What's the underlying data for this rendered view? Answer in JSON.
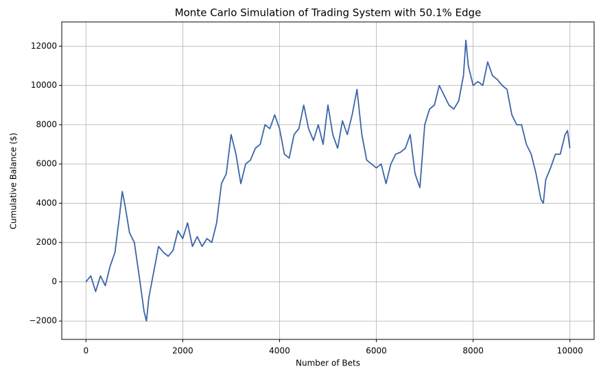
{
  "chart_data": {
    "type": "line",
    "title": "Monte Carlo Simulation of Trading System with 50.1% Edge",
    "x_label": "Number of Bets",
    "y_label": "Cumulative Balance ($)",
    "x": [
      0,
      100,
      200,
      300,
      400,
      500,
      600,
      700,
      750,
      800,
      900,
      1000,
      1100,
      1200,
      1250,
      1300,
      1400,
      1500,
      1600,
      1700,
      1800,
      1900,
      2000,
      2100,
      2200,
      2300,
      2400,
      2500,
      2600,
      2700,
      2800,
      2900,
      3000,
      3100,
      3200,
      3300,
      3400,
      3500,
      3600,
      3700,
      3800,
      3900,
      4000,
      4100,
      4200,
      4300,
      4400,
      4500,
      4600,
      4700,
      4800,
      4900,
      5000,
      5100,
      5200,
      5300,
      5400,
      5500,
      5600,
      5700,
      5800,
      5900,
      6000,
      6100,
      6200,
      6300,
      6400,
      6500,
      6600,
      6700,
      6800,
      6900,
      7000,
      7100,
      7200,
      7300,
      7400,
      7500,
      7600,
      7700,
      7800,
      7850,
      7900,
      8000,
      8100,
      8200,
      8300,
      8400,
      8500,
      8600,
      8700,
      8800,
      8900,
      9000,
      9100,
      9200,
      9300,
      9400,
      9450,
      9500,
      9600,
      9700,
      9800,
      9900,
      9950,
      9999
    ],
    "series": [
      {
        "name": "Cumulative Balance",
        "color": "#3a64a8",
        "values": [
          0,
          300,
          -500,
          300,
          -200,
          800,
          1500,
          3500,
          4600,
          4000,
          2500,
          2000,
          300,
          -1500,
          -2000,
          -800,
          500,
          1800,
          1500,
          1300,
          1600,
          2600,
          2200,
          3000,
          1800,
          2300,
          1800,
          2200,
          2000,
          3000,
          5000,
          5500,
          7500,
          6500,
          5000,
          6000,
          6200,
          6800,
          7000,
          8000,
          7800,
          8500,
          7800,
          6500,
          6300,
          7500,
          7800,
          9000,
          7800,
          7200,
          8000,
          7000,
          9000,
          7500,
          6800,
          8200,
          7500,
          8500,
          9800,
          7500,
          6200,
          6000,
          5800,
          6000,
          5000,
          6000,
          6500,
          6600,
          6800,
          7500,
          5500,
          4800,
          8000,
          8800,
          9000,
          10000,
          9500,
          9000,
          8800,
          9200,
          10500,
          12300,
          11000,
          10000,
          10200,
          10000,
          11200,
          10500,
          10300,
          10000,
          9800,
          8500,
          8000,
          8000,
          7000,
          6500,
          5500,
          4200,
          4000,
          5200,
          5800,
          6500,
          6500,
          7500,
          7700,
          6800
        ]
      }
    ],
    "xlim": [
      -500,
      10500
    ],
    "ylim": [
      -2935,
      13235
    ],
    "xticks": [
      0,
      2000,
      4000,
      6000,
      8000,
      10000
    ],
    "yticks": [
      {
        "value": -2000,
        "label": "−2000"
      },
      0,
      2000,
      4000,
      6000,
      8000,
      10000,
      12000
    ],
    "grid": true
  }
}
